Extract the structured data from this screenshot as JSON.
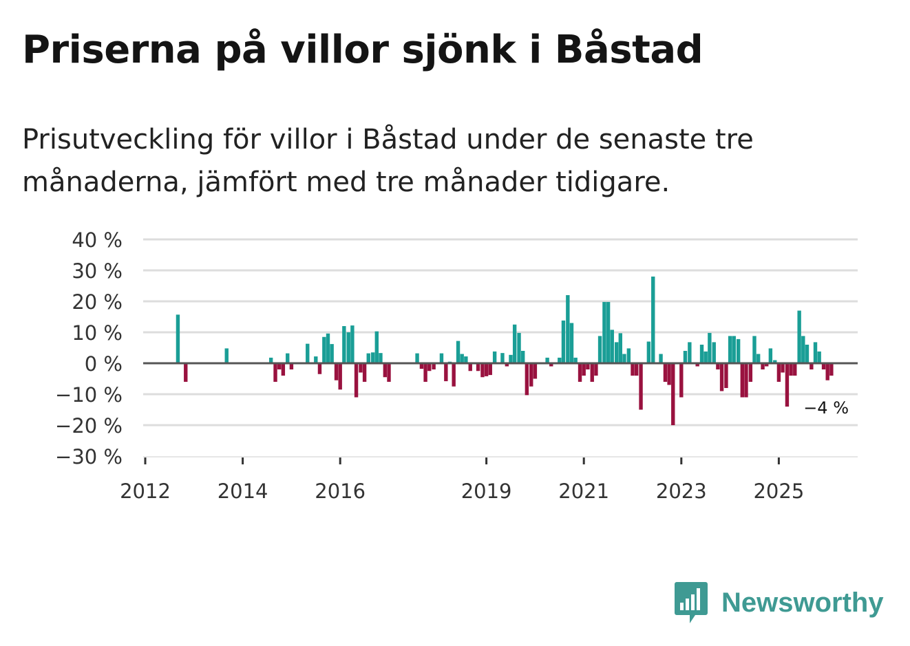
{
  "title": "Priserna på villor sjönk i Båstad",
  "subtitle": "Prisutveckling för villor i Båstad under de senaste tre månaderna, jämfört med tre månader tidigare.",
  "brand": {
    "name": "Newsworthy",
    "icon": "newsworthy-logo-icon",
    "color": "#3f9a93"
  },
  "colors": {
    "positive": "#1a9e96",
    "negative": "#99123f",
    "grid": "#dddddd",
    "zero": "#555555"
  },
  "chart_data": {
    "type": "bar",
    "title": "Priserna på villor sjönk i Båstad",
    "subtitle": "Prisutveckling för villor i Båstad under de senaste tre månaderna, jämfört med tre månader tidigare.",
    "xlabel": "",
    "ylabel": "",
    "unit": "%",
    "ylim": [
      -30,
      40
    ],
    "xlim": [
      2012.0,
      2026.65
    ],
    "y_ticks": [
      40,
      30,
      20,
      10,
      0,
      -10,
      -20,
      -30
    ],
    "y_tick_labels": [
      "40 %",
      "30 %",
      "20 %",
      "10 %",
      "0 %",
      "−10 %",
      "−20 %",
      "−30 %"
    ],
    "x_ticks": [
      2012,
      2014,
      2016,
      2019,
      2021,
      2023,
      2025
    ],
    "x_tick_labels": [
      "2012",
      "2014",
      "2016",
      "2019",
      "2021",
      "2023",
      "2025"
    ],
    "last_value_label": "−4 %",
    "series": [
      {
        "name": "Prisutveckling",
        "points": [
          {
            "x": 2012.67,
            "y": 15.7
          },
          {
            "x": 2012.83,
            "y": -6.0
          },
          {
            "x": 2013.67,
            "y": 4.8
          },
          {
            "x": 2014.58,
            "y": 1.8
          },
          {
            "x": 2014.67,
            "y": -6.0
          },
          {
            "x": 2014.75,
            "y": -2.0
          },
          {
            "x": 2014.83,
            "y": -4.0
          },
          {
            "x": 2014.92,
            "y": 3.2
          },
          {
            "x": 2015.0,
            "y": -2.0
          },
          {
            "x": 2015.33,
            "y": 6.3
          },
          {
            "x": 2015.5,
            "y": 2.2
          },
          {
            "x": 2015.58,
            "y": -3.5
          },
          {
            "x": 2015.67,
            "y": 8.5
          },
          {
            "x": 2015.75,
            "y": 9.6
          },
          {
            "x": 2015.83,
            "y": 6.2
          },
          {
            "x": 2015.92,
            "y": -5.5
          },
          {
            "x": 2016.0,
            "y": -8.5
          },
          {
            "x": 2016.08,
            "y": 12.0
          },
          {
            "x": 2016.17,
            "y": 10.0
          },
          {
            "x": 2016.25,
            "y": 12.2
          },
          {
            "x": 2016.33,
            "y": -11.0
          },
          {
            "x": 2016.42,
            "y": -3.0
          },
          {
            "x": 2016.5,
            "y": -6.0
          },
          {
            "x": 2016.58,
            "y": 3.2
          },
          {
            "x": 2016.67,
            "y": 3.5
          },
          {
            "x": 2016.75,
            "y": 10.3
          },
          {
            "x": 2016.83,
            "y": 3.3
          },
          {
            "x": 2016.92,
            "y": -4.5
          },
          {
            "x": 2017.0,
            "y": -6.0
          },
          {
            "x": 2017.58,
            "y": 3.2
          },
          {
            "x": 2017.67,
            "y": -1.8
          },
          {
            "x": 2017.75,
            "y": -6.0
          },
          {
            "x": 2017.83,
            "y": -2.5
          },
          {
            "x": 2017.92,
            "y": -2.0
          },
          {
            "x": 2018.08,
            "y": 3.2
          },
          {
            "x": 2018.17,
            "y": -5.8
          },
          {
            "x": 2018.25,
            "y": 0.5
          },
          {
            "x": 2018.33,
            "y": -7.5
          },
          {
            "x": 2018.42,
            "y": 7.2
          },
          {
            "x": 2018.5,
            "y": 3.0
          },
          {
            "x": 2018.58,
            "y": 2.2
          },
          {
            "x": 2018.67,
            "y": -2.5
          },
          {
            "x": 2018.83,
            "y": -2.5
          },
          {
            "x": 2018.92,
            "y": -4.5
          },
          {
            "x": 2019.0,
            "y": -4.2
          },
          {
            "x": 2019.08,
            "y": -3.8
          },
          {
            "x": 2019.17,
            "y": 3.8
          },
          {
            "x": 2019.33,
            "y": 3.3
          },
          {
            "x": 2019.42,
            "y": -1.0
          },
          {
            "x": 2019.5,
            "y": 2.7
          },
          {
            "x": 2019.58,
            "y": 12.5
          },
          {
            "x": 2019.67,
            "y": 9.8
          },
          {
            "x": 2019.75,
            "y": 4.0
          },
          {
            "x": 2019.83,
            "y": -10.3
          },
          {
            "x": 2019.92,
            "y": -7.5
          },
          {
            "x": 2020.0,
            "y": -5.0
          },
          {
            "x": 2020.25,
            "y": 1.8
          },
          {
            "x": 2020.33,
            "y": -1.0
          },
          {
            "x": 2020.5,
            "y": 1.8
          },
          {
            "x": 2020.58,
            "y": 13.8
          },
          {
            "x": 2020.67,
            "y": 22.0
          },
          {
            "x": 2020.75,
            "y": 13.0
          },
          {
            "x": 2020.83,
            "y": 1.8
          },
          {
            "x": 2020.92,
            "y": -6.0
          },
          {
            "x": 2021.0,
            "y": -4.0
          },
          {
            "x": 2021.08,
            "y": -2.0
          },
          {
            "x": 2021.17,
            "y": -6.0
          },
          {
            "x": 2021.25,
            "y": -4.0
          },
          {
            "x": 2021.33,
            "y": 8.8
          },
          {
            "x": 2021.42,
            "y": 19.8
          },
          {
            "x": 2021.5,
            "y": 19.8
          },
          {
            "x": 2021.58,
            "y": 10.8
          },
          {
            "x": 2021.67,
            "y": 6.8
          },
          {
            "x": 2021.75,
            "y": 9.7
          },
          {
            "x": 2021.83,
            "y": 3.0
          },
          {
            "x": 2021.92,
            "y": 4.8
          },
          {
            "x": 2022.0,
            "y": -4.0
          },
          {
            "x": 2022.08,
            "y": -4.0
          },
          {
            "x": 2022.17,
            "y": -15.0
          },
          {
            "x": 2022.33,
            "y": 7.0
          },
          {
            "x": 2022.42,
            "y": 28.0
          },
          {
            "x": 2022.58,
            "y": 3.0
          },
          {
            "x": 2022.67,
            "y": -6.0
          },
          {
            "x": 2022.75,
            "y": -7.0
          },
          {
            "x": 2022.83,
            "y": -20.0
          },
          {
            "x": 2023.0,
            "y": -11.0
          },
          {
            "x": 2023.08,
            "y": 4.0
          },
          {
            "x": 2023.17,
            "y": 6.8
          },
          {
            "x": 2023.33,
            "y": -1.0
          },
          {
            "x": 2023.42,
            "y": 6.0
          },
          {
            "x": 2023.5,
            "y": 3.8
          },
          {
            "x": 2023.58,
            "y": 9.8
          },
          {
            "x": 2023.67,
            "y": 6.8
          },
          {
            "x": 2023.75,
            "y": -2.0
          },
          {
            "x": 2023.83,
            "y": -9.0
          },
          {
            "x": 2023.92,
            "y": -8.0
          },
          {
            "x": 2024.0,
            "y": 8.8
          },
          {
            "x": 2024.08,
            "y": 8.8
          },
          {
            "x": 2024.17,
            "y": 7.8
          },
          {
            "x": 2024.25,
            "y": -11.0
          },
          {
            "x": 2024.33,
            "y": -11.0
          },
          {
            "x": 2024.42,
            "y": -6.0
          },
          {
            "x": 2024.5,
            "y": 8.8
          },
          {
            "x": 2024.58,
            "y": 3.0
          },
          {
            "x": 2024.67,
            "y": -2.0
          },
          {
            "x": 2024.75,
            "y": -1.0
          },
          {
            "x": 2024.83,
            "y": 4.8
          },
          {
            "x": 2024.92,
            "y": 1.0
          },
          {
            "x": 2025.0,
            "y": -6.0
          },
          {
            "x": 2025.08,
            "y": -3.0
          },
          {
            "x": 2025.17,
            "y": -14.0
          },
          {
            "x": 2025.25,
            "y": -4.0
          },
          {
            "x": 2025.33,
            "y": -4.0
          },
          {
            "x": 2025.42,
            "y": 17.0
          },
          {
            "x": 2025.5,
            "y": 8.8
          },
          {
            "x": 2025.58,
            "y": 6.0
          },
          {
            "x": 2025.67,
            "y": -2.0
          },
          {
            "x": 2025.75,
            "y": 6.8
          },
          {
            "x": 2025.83,
            "y": 3.8
          },
          {
            "x": 2025.92,
            "y": -2.0
          },
          {
            "x": 2026.0,
            "y": -5.5
          },
          {
            "x": 2026.08,
            "y": -4.0
          }
        ]
      }
    ]
  }
}
